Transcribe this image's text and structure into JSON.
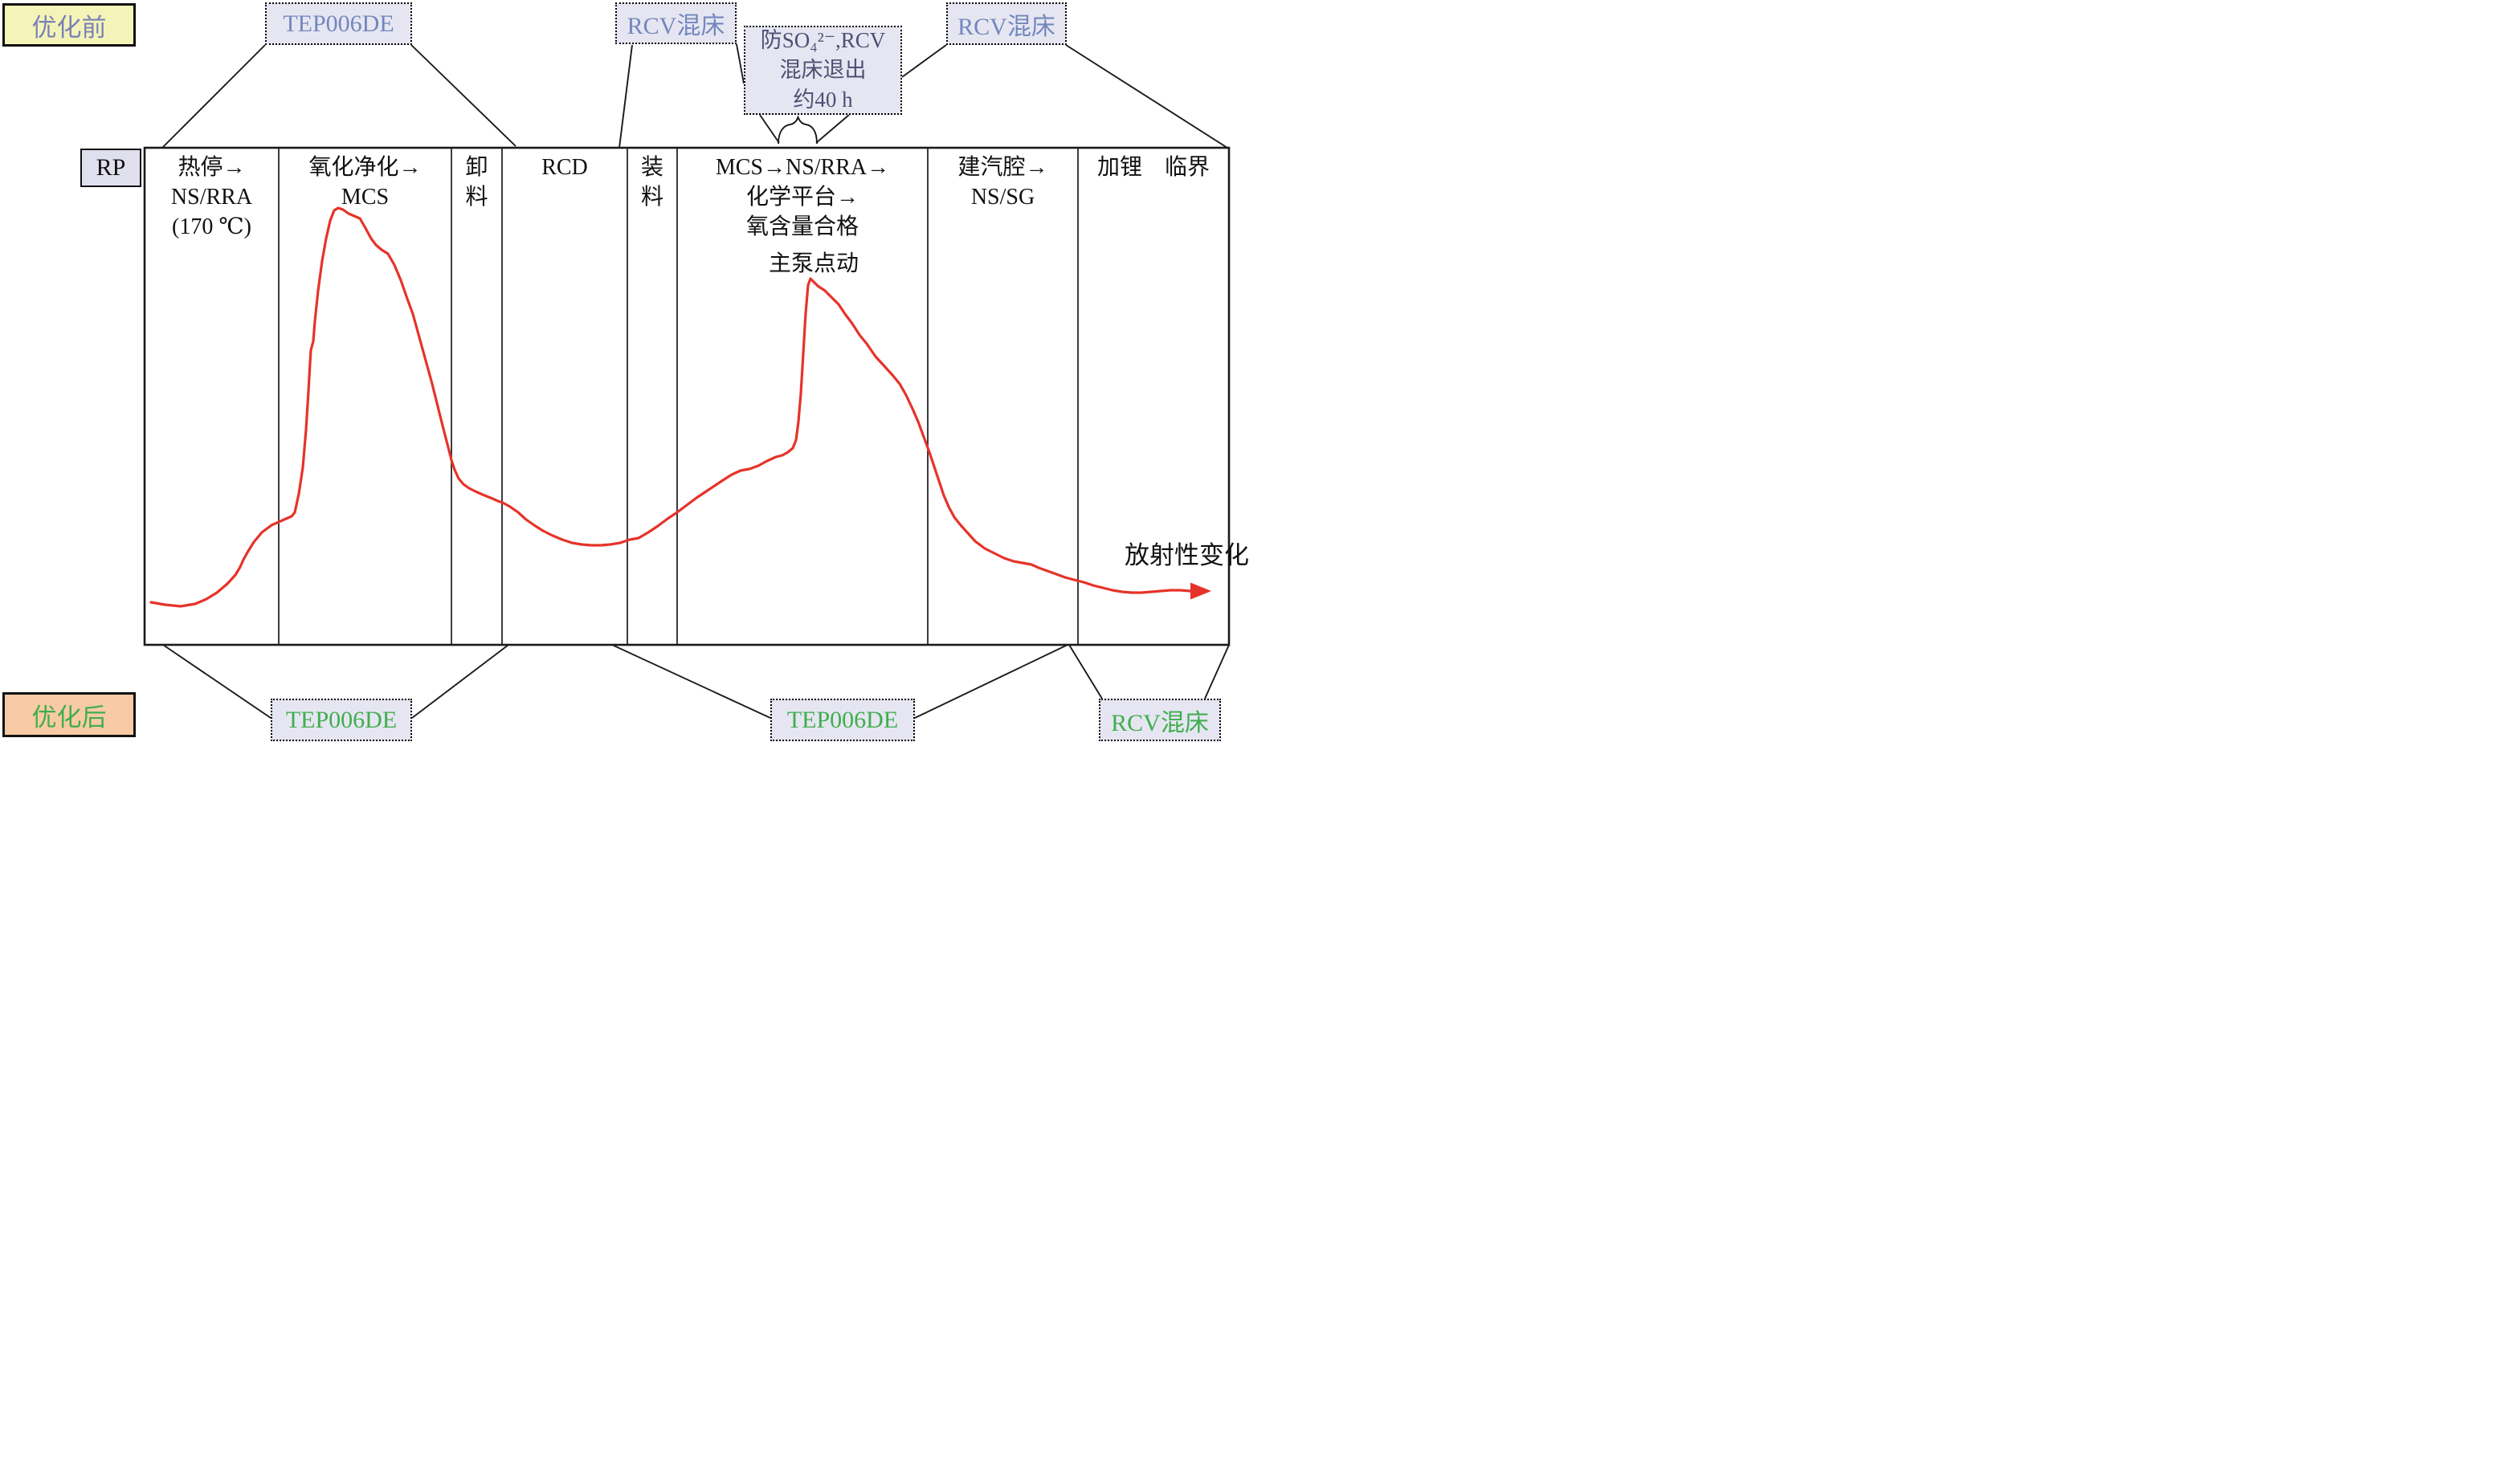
{
  "legend": {
    "before": "优化前",
    "after": "优化后"
  },
  "rp": "RP",
  "top_boxes": {
    "tep": "TEP006DE",
    "rcv_mid": "RCV混床",
    "so4_note": "防SO₄²⁻,RCV\n混床退出\n约40 h",
    "rcv_right": "RCV混床"
  },
  "phases": [
    {
      "label": "热停→\nNS/RRA\n(170 ℃)"
    },
    {
      "label": "氧化净化→\nMCS"
    },
    {
      "label": "卸\n料"
    },
    {
      "label": "RCD"
    },
    {
      "label": "装\n料"
    },
    {
      "label": "MCS→NS/RRA→\n化学平台→\n氧含量合格"
    },
    {
      "label": "建汽腔→\nNS/SG"
    },
    {
      "label": "加锂　临界"
    }
  ],
  "annotations": {
    "main_pump": "主泵点动",
    "curve_label": "放射性变化"
  },
  "bottom_boxes": {
    "tep1": "TEP006DE",
    "tep2": "TEP006DE",
    "rcv": "RCV混床"
  },
  "colors": {
    "curve": "#e63329",
    "line": "#1a1a1a",
    "lav_fill": "#e6e6f2",
    "before_fill": "#f4f4b8",
    "after_fill": "#f8cba6",
    "blue_text": "#7287bd",
    "dark_blue_text": "#4d5073",
    "green_text": "#3fae4e",
    "legend_blue": "#7a82b5",
    "rp_fill": "#dfdfed"
  },
  "curve": {
    "points": [
      [
        188,
        750
      ],
      [
        205,
        753
      ],
      [
        225,
        755
      ],
      [
        243,
        752
      ],
      [
        257,
        746
      ],
      [
        270,
        738
      ],
      [
        283,
        727
      ],
      [
        293,
        716
      ],
      [
        299,
        706
      ],
      [
        303,
        697
      ],
      [
        308,
        688
      ],
      [
        316,
        675
      ],
      [
        326,
        663
      ],
      [
        338,
        654
      ],
      [
        347,
        650
      ],
      [
        356,
        646
      ],
      [
        363,
        643
      ],
      [
        367,
        638
      ],
      [
        372,
        615
      ],
      [
        377,
        582
      ],
      [
        381,
        535
      ],
      [
        384,
        487
      ],
      [
        386,
        452
      ],
      [
        387,
        436
      ],
      [
        390,
        425
      ],
      [
        392,
        400
      ],
      [
        396,
        362
      ],
      [
        401,
        325
      ],
      [
        406,
        297
      ],
      [
        411,
        275
      ],
      [
        416,
        262
      ],
      [
        421,
        259
      ],
      [
        427,
        261
      ],
      [
        434,
        266
      ],
      [
        441,
        269
      ],
      [
        448,
        272
      ],
      [
        455,
        284
      ],
      [
        462,
        297
      ],
      [
        468,
        305
      ],
      [
        475,
        311
      ],
      [
        483,
        316
      ],
      [
        491,
        330
      ],
      [
        499,
        349
      ],
      [
        507,
        372
      ],
      [
        514,
        391
      ],
      [
        522,
        420
      ],
      [
        530,
        449
      ],
      [
        538,
        478
      ],
      [
        545,
        506
      ],
      [
        552,
        534
      ],
      [
        558,
        557
      ],
      [
        562,
        573
      ],
      [
        566,
        585
      ],
      [
        571,
        596
      ],
      [
        577,
        603
      ],
      [
        584,
        608
      ],
      [
        592,
        612
      ],
      [
        601,
        616
      ],
      [
        611,
        620
      ],
      [
        620,
        624
      ],
      [
        626,
        626
      ],
      [
        635,
        631
      ],
      [
        645,
        638
      ],
      [
        655,
        647
      ],
      [
        665,
        654
      ],
      [
        676,
        661
      ],
      [
        688,
        667
      ],
      [
        700,
        672
      ],
      [
        712,
        676
      ],
      [
        724,
        678
      ],
      [
        736,
        679
      ],
      [
        748,
        679
      ],
      [
        760,
        678
      ],
      [
        772,
        676
      ],
      [
        784,
        672
      ],
      [
        795,
        670
      ],
      [
        807,
        663
      ],
      [
        819,
        655
      ],
      [
        831,
        646
      ],
      [
        843,
        638
      ],
      [
        855,
        629
      ],
      [
        867,
        620
      ],
      [
        879,
        612
      ],
      [
        891,
        604
      ],
      [
        900,
        598
      ],
      [
        911,
        591
      ],
      [
        922,
        586
      ],
      [
        933,
        584
      ],
      [
        944,
        580
      ],
      [
        955,
        574
      ],
      [
        966,
        569
      ],
      [
        974,
        567
      ],
      [
        981,
        563
      ],
      [
        987,
        558
      ],
      [
        991,
        548
      ],
      [
        994,
        525
      ],
      [
        997,
        490
      ],
      [
        1000,
        440
      ],
      [
        1003,
        390
      ],
      [
        1006,
        355
      ],
      [
        1009,
        347
      ],
      [
        1013,
        351
      ],
      [
        1018,
        356
      ],
      [
        1027,
        362
      ],
      [
        1036,
        371
      ],
      [
        1044,
        379
      ],
      [
        1052,
        391
      ],
      [
        1061,
        403
      ],
      [
        1070,
        417
      ],
      [
        1079,
        428
      ],
      [
        1090,
        444
      ],
      [
        1101,
        456
      ],
      [
        1111,
        467
      ],
      [
        1120,
        478
      ],
      [
        1128,
        492
      ],
      [
        1136,
        509
      ],
      [
        1143,
        525
      ],
      [
        1150,
        544
      ],
      [
        1157,
        563
      ],
      [
        1163,
        581
      ],
      [
        1169,
        599
      ],
      [
        1175,
        617
      ],
      [
        1181,
        631
      ],
      [
        1188,
        644
      ],
      [
        1196,
        654
      ],
      [
        1205,
        664
      ],
      [
        1214,
        674
      ],
      [
        1226,
        683
      ],
      [
        1238,
        689
      ],
      [
        1250,
        695
      ],
      [
        1262,
        699
      ],
      [
        1273,
        701
      ],
      [
        1284,
        703
      ],
      [
        1293,
        707
      ],
      [
        1304,
        711
      ],
      [
        1315,
        715
      ],
      [
        1326,
        719
      ],
      [
        1337,
        722
      ],
      [
        1349,
        725
      ],
      [
        1361,
        729
      ],
      [
        1373,
        732
      ],
      [
        1385,
        735
      ],
      [
        1397,
        737
      ],
      [
        1409,
        738
      ],
      [
        1421,
        738
      ],
      [
        1433,
        737
      ],
      [
        1445,
        736
      ],
      [
        1457,
        735
      ],
      [
        1469,
        735
      ],
      [
        1482,
        736
      ]
    ],
    "arrow_tip": [
      1508,
      736
    ]
  }
}
